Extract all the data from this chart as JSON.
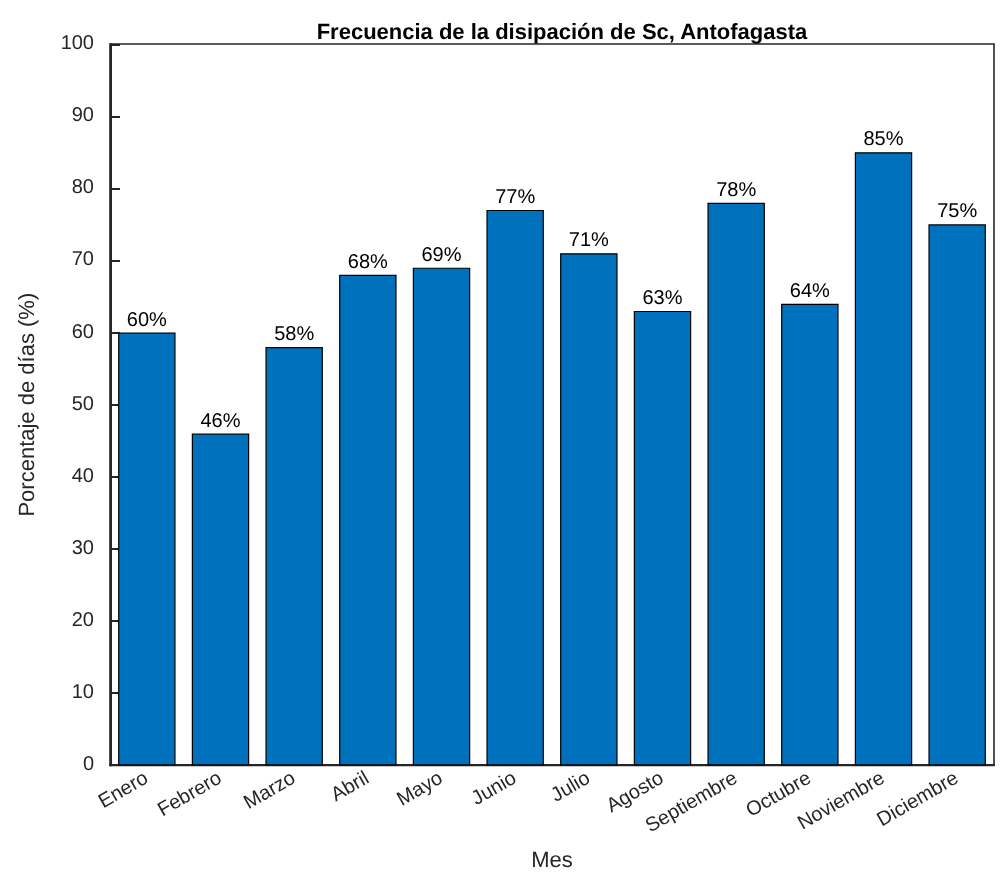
{
  "chart_data": {
    "type": "bar",
    "title": "Frecuencia de la disipación de Sc, Antofagasta",
    "xlabel": "Mes",
    "ylabel": "Porcentaje de días (%)",
    "categories": [
      "Enero",
      "Febrero",
      "Marzo",
      "Abril",
      "Mayo",
      "Junio",
      "Julio",
      "Agosto",
      "Septiembre",
      "Octubre",
      "Noviembre",
      "Diciembre"
    ],
    "values": [
      60,
      46,
      58,
      68,
      69,
      77,
      71,
      63,
      78,
      64,
      85,
      75
    ],
    "value_labels": [
      "60%",
      "46%",
      "58%",
      "68%",
      "69%",
      "77%",
      "71%",
      "63%",
      "78%",
      "64%",
      "85%",
      "75%"
    ],
    "color": "#0072bd",
    "ylim": [
      0,
      100
    ],
    "yticks": [
      0,
      10,
      20,
      30,
      40,
      50,
      60,
      70,
      80,
      90,
      100
    ],
    "grid": false
  }
}
